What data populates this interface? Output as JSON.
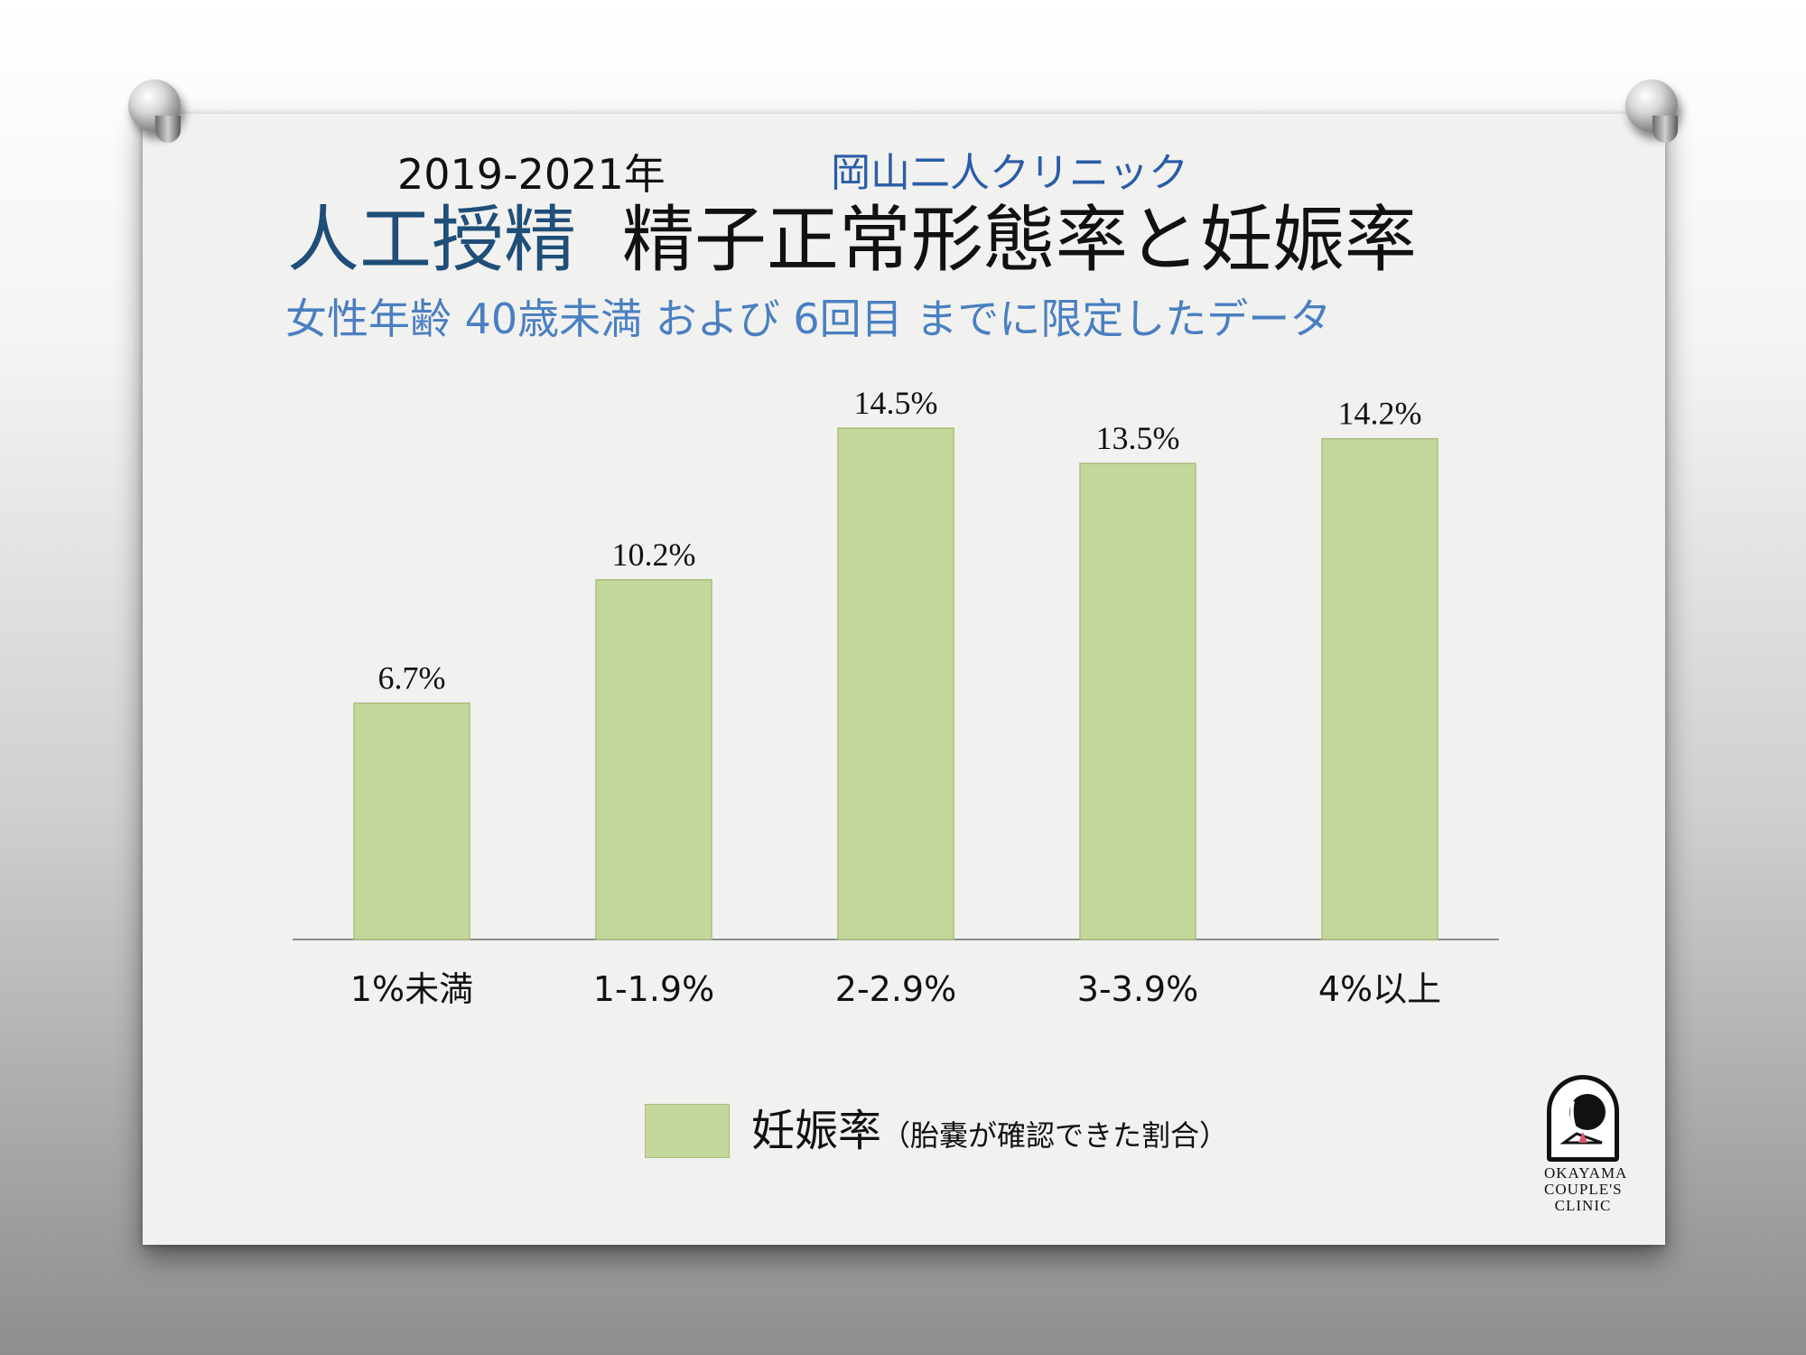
{
  "header": {
    "years": "2019-2021年",
    "clinic": "岡山二人クリニック",
    "title_part1": "人工授精",
    "title_part2": "精子正常形態率と妊娠率",
    "subtitle": "女性年齢 40歳未満 および 6回目 までに限定したデータ"
  },
  "chart_data": {
    "type": "bar",
    "categories": [
      "1%未満",
      "1-1.9%",
      "2-2.9%",
      "3-3.9%",
      "4%以上"
    ],
    "series": [
      {
        "name": "妊娠率（胎嚢が確認できた割合）",
        "values": [
          6.7,
          10.2,
          14.5,
          13.5,
          14.2
        ]
      }
    ],
    "data_labels": [
      "6.7%",
      "10.2%",
      "14.5%",
      "13.5%",
      "14.2%"
    ],
    "ylim": [
      0,
      14.5
    ],
    "grid": false,
    "legend": "bottom",
    "color": "#c4d79b"
  },
  "legend": {
    "label": "妊娠率",
    "note": "（胎嚢が確認できた割合）"
  },
  "logo": {
    "line1": "OKAYAMA",
    "line2": "COUPLE'S",
    "line3": "CLINIC"
  }
}
